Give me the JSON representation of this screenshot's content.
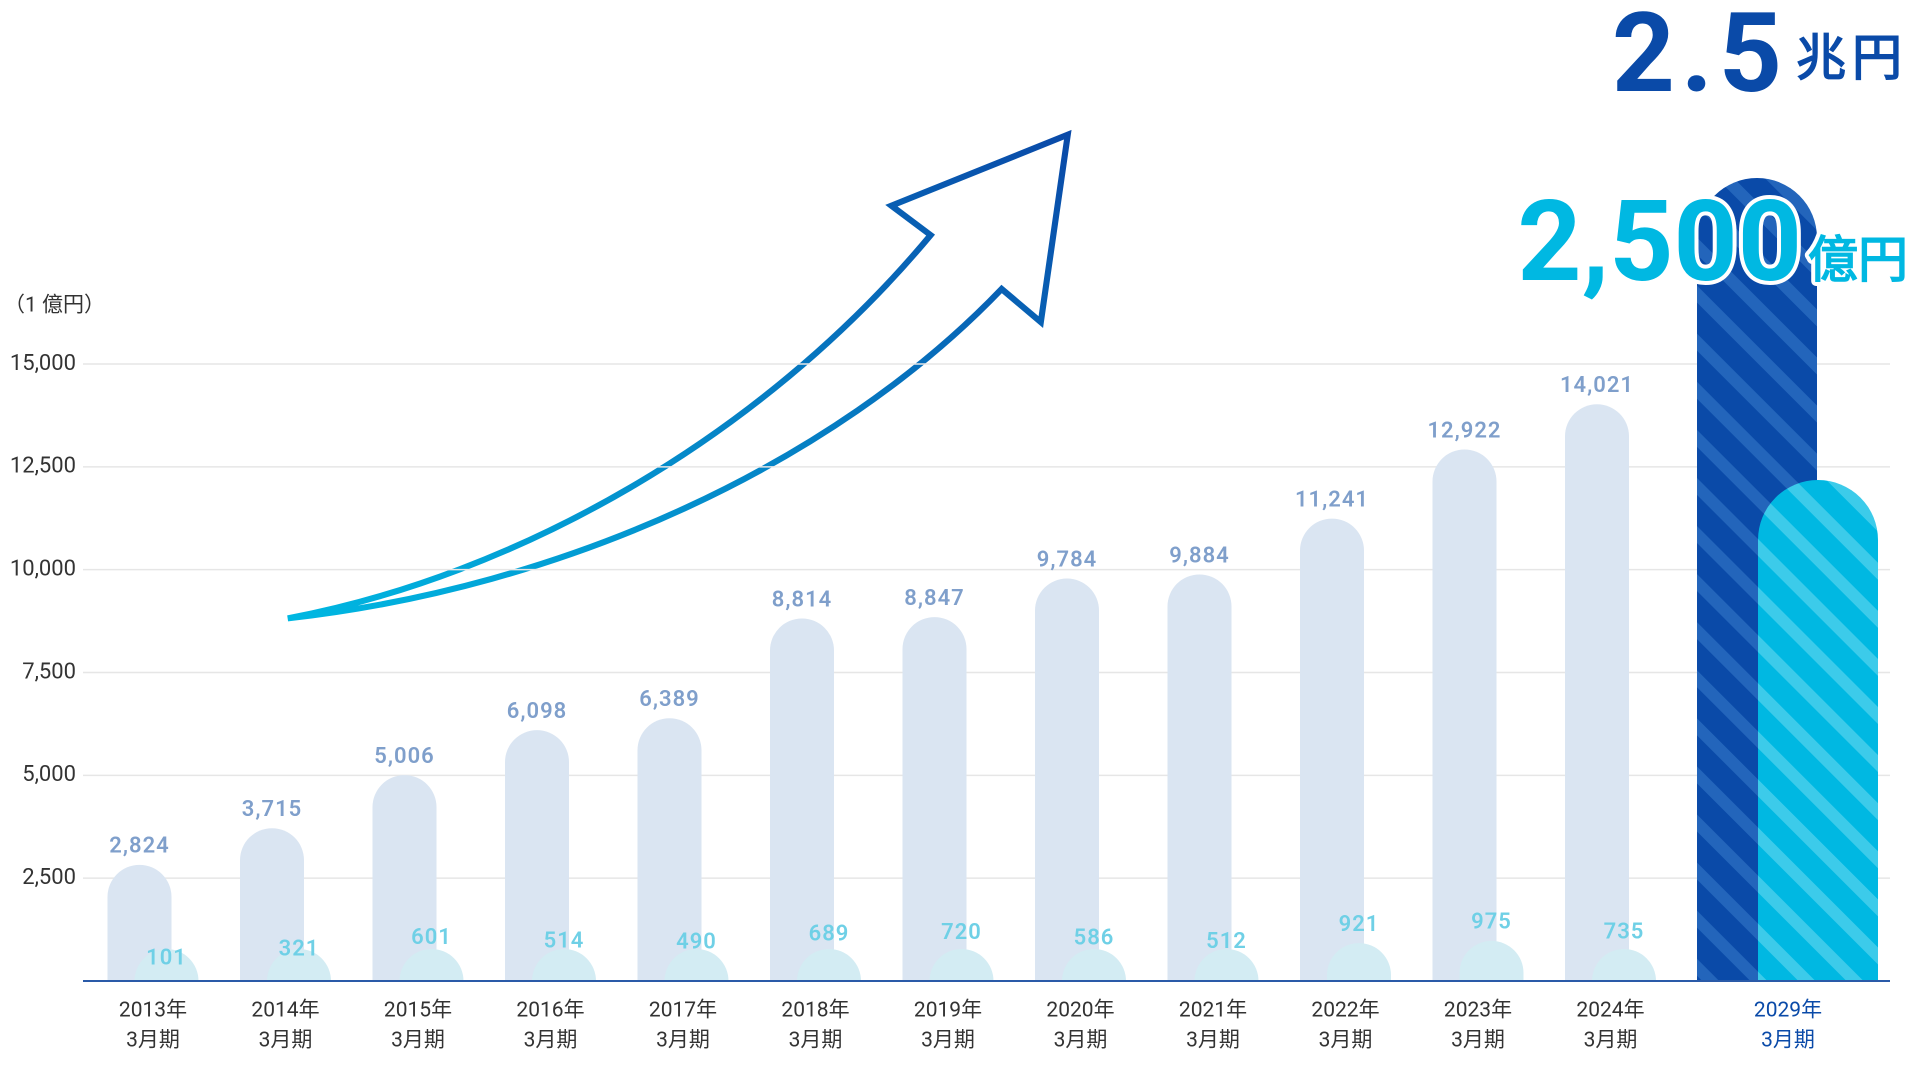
{
  "chart_data": {
    "type": "bar",
    "y_unit_label": "（1 億円）",
    "categories": [
      [
        "2013年",
        "3月期"
      ],
      [
        "2014年",
        "3月期"
      ],
      [
        "2015年",
        "3月期"
      ],
      [
        "2016年",
        "3月期"
      ],
      [
        "2017年",
        "3月期"
      ],
      [
        "2018年",
        "3月期"
      ],
      [
        "2019年",
        "3月期"
      ],
      [
        "2020年",
        "3月期"
      ],
      [
        "2021年",
        "3月期"
      ],
      [
        "2022年",
        "3月期"
      ],
      [
        "2023年",
        "3月期"
      ],
      [
        "2024年",
        "3月期"
      ]
    ],
    "series": [
      {
        "color": "#dae5f2",
        "values": [
          2824,
          3715,
          5006,
          6098,
          6389,
          8814,
          8847,
          9784,
          9884,
          11241,
          12922,
          14021
        ],
        "value_labels": [
          "2,824",
          "3,715",
          "5,006",
          "6,098",
          "6,389",
          "8,814",
          "8,847",
          "9,784",
          "9,884",
          "11,241",
          "12,922",
          "14,021"
        ]
      },
      {
        "color": "#d3ecf3",
        "values": [
          101,
          321,
          601,
          514,
          490,
          689,
          720,
          586,
          512,
          921,
          975,
          735
        ]
      }
    ],
    "ylim": [
      0,
      15000
    ],
    "yticks": [
      {
        "value": 2500,
        "label": "2,500"
      },
      {
        "value": 5000,
        "label": "5,000"
      },
      {
        "value": 7500,
        "label": "7,500"
      },
      {
        "value": 10000,
        "label": "10,000"
      },
      {
        "value": 12500,
        "label": "12,500"
      },
      {
        "value": 15000,
        "label": "15,000"
      }
    ],
    "grid": true,
    "target": {
      "category": [
        "2029年",
        "3月期"
      ],
      "revenue": {
        "value": "2.5",
        "unit": "兆円",
        "color": "#0a4aa8"
      },
      "profit": {
        "value": "2,500",
        "unit": "億円",
        "color": "#00b8e2"
      }
    }
  }
}
